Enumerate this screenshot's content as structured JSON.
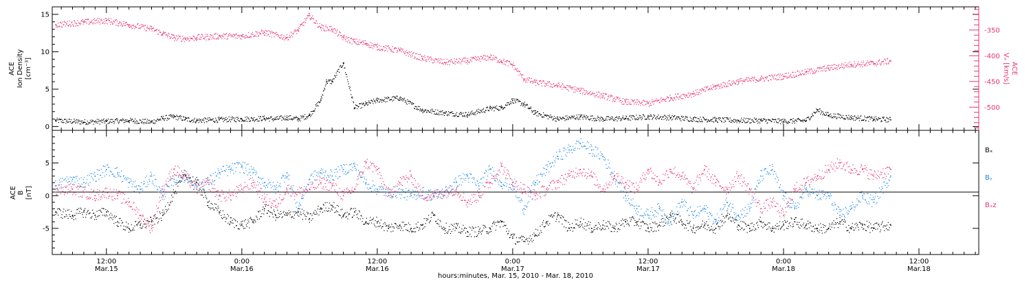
{
  "colors": {
    "black": "#000000",
    "pink": "#e8336b",
    "blue": "#1e88e5"
  },
  "xaxis": {
    "title": "hours:minutes, Mar. 15, 2010 - Mar. 18, 2010",
    "range_hours": [
      7.2,
      89.3
    ],
    "ticks": [
      {
        "h": 12,
        "time": "12:00",
        "date": "Mar.15"
      },
      {
        "h": 24,
        "time": "0:00",
        "date": "Mar.16"
      },
      {
        "h": 36,
        "time": "12:00",
        "date": "Mar.16"
      },
      {
        "h": 48,
        "time": "0:00",
        "date": "Mar.17"
      },
      {
        "h": 60,
        "time": "12:00",
        "date": "Mar.17"
      },
      {
        "h": 72,
        "time": "0:00",
        "date": "Mar.18"
      },
      {
        "h": 84,
        "time": "12:00",
        "date": "Mar.18"
      }
    ]
  },
  "panels": {
    "top": {
      "ylabel": [
        "ACE",
        "Ion Density",
        "[cm⁻³]"
      ],
      "ylabel_right": [
        "ACE",
        "Vₓ [km/s]"
      ],
      "left_ticks": [
        "0",
        "5",
        "10",
        "15"
      ],
      "right_ticks": [
        "-350",
        "-400",
        "-450",
        "-500"
      ]
    },
    "bottom": {
      "ylabel": [
        "ACE",
        "B",
        "[nT]"
      ],
      "left_ticks": [
        "5",
        "0",
        "-5"
      ],
      "legend": [
        "Bₓ",
        "Bᵧ",
        "Bₓz"
      ]
    }
  },
  "chart_data": [
    {
      "type": "scatter",
      "title": "",
      "xlabel": "hours:minutes, Mar. 15, 2010 - Mar. 18, 2010",
      "ylabel": "ACE Ion Density [cm-3]",
      "ylim": [
        -0.5,
        16
      ],
      "ylim_right": [
        -545,
        -305
      ],
      "series": [
        {
          "name": "Ion Density",
          "axis": "left",
          "color": "#000000",
          "x": [
            7.5,
            10,
            12,
            14,
            16,
            17,
            18,
            19,
            20,
            22,
            24,
            25,
            26,
            27,
            28,
            29,
            30,
            31,
            31.5,
            32,
            33,
            34,
            35,
            36,
            38,
            40,
            42,
            44,
            46,
            47,
            48,
            49,
            50,
            52,
            54,
            56,
            58,
            60,
            62,
            64,
            66,
            68,
            70,
            72,
            74,
            75,
            76,
            78,
            80,
            81.5
          ],
          "y": [
            0.8,
            0.6,
            0.7,
            0.8,
            0.6,
            1.1,
            1.3,
            1.0,
            0.8,
            0.9,
            1.0,
            1.0,
            1.1,
            1.0,
            1.2,
            1.0,
            1.5,
            3.5,
            6.0,
            6.0,
            8.5,
            2.5,
            3.0,
            3.5,
            3.8,
            2.2,
            1.8,
            1.6,
            2.4,
            2.5,
            3.5,
            3.0,
            1.8,
            1.0,
            1.3,
            1.0,
            1.1,
            1.3,
            1.2,
            1.0,
            0.9,
            0.8,
            0.8,
            0.7,
            0.8,
            2.2,
            1.5,
            1.2,
            1.0,
            0.9
          ]
        },
        {
          "name": "Vx",
          "axis": "right",
          "color": "#e8336b",
          "x": [
            7.5,
            10,
            12,
            14,
            16,
            17,
            18,
            19,
            20,
            22,
            24,
            26,
            28,
            29,
            30,
            31,
            32,
            33,
            34,
            35,
            36,
            38,
            40,
            42,
            44,
            46,
            47,
            48,
            49,
            50,
            52,
            54,
            56,
            58,
            60,
            62,
            64,
            66,
            68,
            70,
            72,
            74,
            76,
            78,
            80,
            81.5
          ],
          "y": [
            -340,
            -335,
            -332,
            -340,
            -348,
            -357,
            -365,
            -367,
            -365,
            -362,
            -362,
            -355,
            -365,
            -350,
            -322,
            -345,
            -348,
            -365,
            -373,
            -376,
            -383,
            -390,
            -405,
            -413,
            -410,
            -403,
            -410,
            -418,
            -445,
            -452,
            -458,
            -468,
            -478,
            -490,
            -493,
            -482,
            -474,
            -460,
            -450,
            -445,
            -440,
            -432,
            -424,
            -417,
            -415,
            -410
          ]
        }
      ]
    },
    {
      "type": "scatter",
      "title": "",
      "xlabel": "hours:minutes, Mar. 15, 2010 - Mar. 18, 2010",
      "ylabel": "ACE B [nT]",
      "ylim": [
        -9,
        10
      ],
      "series": [
        {
          "name": "Bx",
          "color": "#000000",
          "x": [
            7.5,
            9,
            10,
            11,
            12,
            13,
            14,
            15,
            16,
            17,
            18,
            19,
            20,
            21,
            22,
            23,
            24,
            25,
            26,
            27,
            28,
            29,
            30,
            31,
            32,
            33,
            34,
            35,
            36,
            37,
            38,
            39,
            40,
            41,
            42,
            43,
            44,
            45,
            46,
            47,
            48,
            49,
            50,
            51,
            52,
            53,
            54,
            55,
            56,
            57,
            58,
            59,
            60,
            61,
            62,
            63,
            64,
            65,
            66,
            67,
            68,
            69,
            70,
            71,
            72,
            73,
            74,
            75,
            76,
            77,
            78,
            79,
            80,
            81.5
          ],
          "y": [
            -2.5,
            -3,
            -2.5,
            -3,
            -2.5,
            -4,
            -5,
            -4.5,
            -4,
            -3,
            0.5,
            3,
            2,
            -1,
            -2.5,
            -4,
            -4.5,
            -4,
            -2,
            -3,
            -3,
            -2.5,
            -3.5,
            -2,
            -1.5,
            -3,
            -2.5,
            -4,
            -4,
            -5,
            -4.5,
            -5,
            -4.5,
            -3,
            -5,
            -5,
            -5.5,
            -5.5,
            -5,
            -4,
            -6.5,
            -7,
            -6,
            -4,
            -3,
            -5,
            -4,
            -5,
            -4.5,
            -5,
            -4,
            -4,
            -5,
            -4.5,
            -3,
            -4,
            -5,
            -4.5,
            -5,
            -3,
            -4.5,
            -5,
            -4,
            -5,
            -4.5,
            -4,
            -4.5,
            -5,
            -5,
            -4,
            -5,
            -4.5,
            -5,
            -4.5
          ]
        },
        {
          "name": "By",
          "color": "#1e88e5",
          "x": [
            7.5,
            9,
            10,
            11,
            12,
            13,
            14,
            15,
            16,
            17,
            18,
            19,
            20,
            21,
            22,
            23,
            24,
            25,
            26,
            27,
            28,
            29,
            30,
            31,
            32,
            33,
            34,
            35,
            36,
            37,
            38,
            39,
            40,
            41,
            42,
            43,
            44,
            45,
            46,
            47,
            48,
            49,
            50,
            51,
            52,
            53,
            54,
            55,
            56,
            57,
            58,
            59,
            60,
            61,
            62,
            63,
            64,
            65,
            66,
            67,
            68,
            69,
            70,
            71,
            72,
            73,
            74,
            75,
            76,
            77,
            78,
            79,
            80,
            81.5
          ],
          "y": [
            1.5,
            2.5,
            2,
            3,
            4,
            3.5,
            2,
            1,
            3,
            0,
            2.5,
            3,
            1.5,
            2,
            3.5,
            4,
            4.5,
            3.5,
            2,
            1,
            3.5,
            -2,
            2.5,
            3.5,
            3,
            4,
            4.5,
            2,
            1,
            0.5,
            0.5,
            0,
            0.5,
            0,
            0.5,
            2,
            3,
            1.5,
            4,
            2,
            1.5,
            -2,
            2,
            4,
            6,
            7,
            8,
            7,
            6,
            3,
            0,
            -2,
            -3,
            -2,
            -4,
            -1,
            -3,
            -2,
            -4,
            -1,
            -3,
            -2,
            3,
            4,
            0,
            -2,
            1,
            0,
            0,
            -3,
            -2,
            0,
            -1,
            3
          ]
        },
        {
          "name": "Bz",
          "color": "#e8336b",
          "x": [
            7.5,
            9,
            10,
            11,
            12,
            13,
            14,
            15,
            16,
            17,
            18,
            19,
            20,
            21,
            22,
            23,
            24,
            25,
            26,
            27,
            28,
            29,
            30,
            31,
            32,
            33,
            34,
            35,
            36,
            37,
            38,
            39,
            40,
            41,
            42,
            43,
            44,
            45,
            46,
            47,
            48,
            49,
            50,
            51,
            52,
            53,
            54,
            55,
            56,
            57,
            58,
            59,
            60,
            61,
            62,
            63,
            64,
            65,
            66,
            67,
            68,
            69,
            70,
            71,
            72,
            73,
            74,
            75,
            76,
            77,
            78,
            79,
            80,
            81.5
          ],
          "y": [
            1,
            1,
            0.5,
            0,
            0.5,
            0,
            -1,
            -3,
            -5,
            1,
            4,
            3,
            1,
            2,
            0,
            0,
            1,
            2,
            -0.5,
            -1.5,
            1,
            0.5,
            1,
            2,
            1.5,
            0,
            1,
            5,
            4,
            0,
            2,
            3,
            0,
            0,
            0.5,
            1,
            -1,
            0,
            2,
            4.5,
            2,
            1,
            0,
            1,
            2,
            3,
            4,
            3,
            1,
            3,
            2,
            1,
            4,
            2,
            4,
            3,
            1,
            4,
            2,
            1,
            3,
            1,
            -2,
            -1,
            -3,
            1,
            2,
            3,
            4,
            5,
            4,
            4,
            3,
            4
          ]
        }
      ]
    }
  ]
}
